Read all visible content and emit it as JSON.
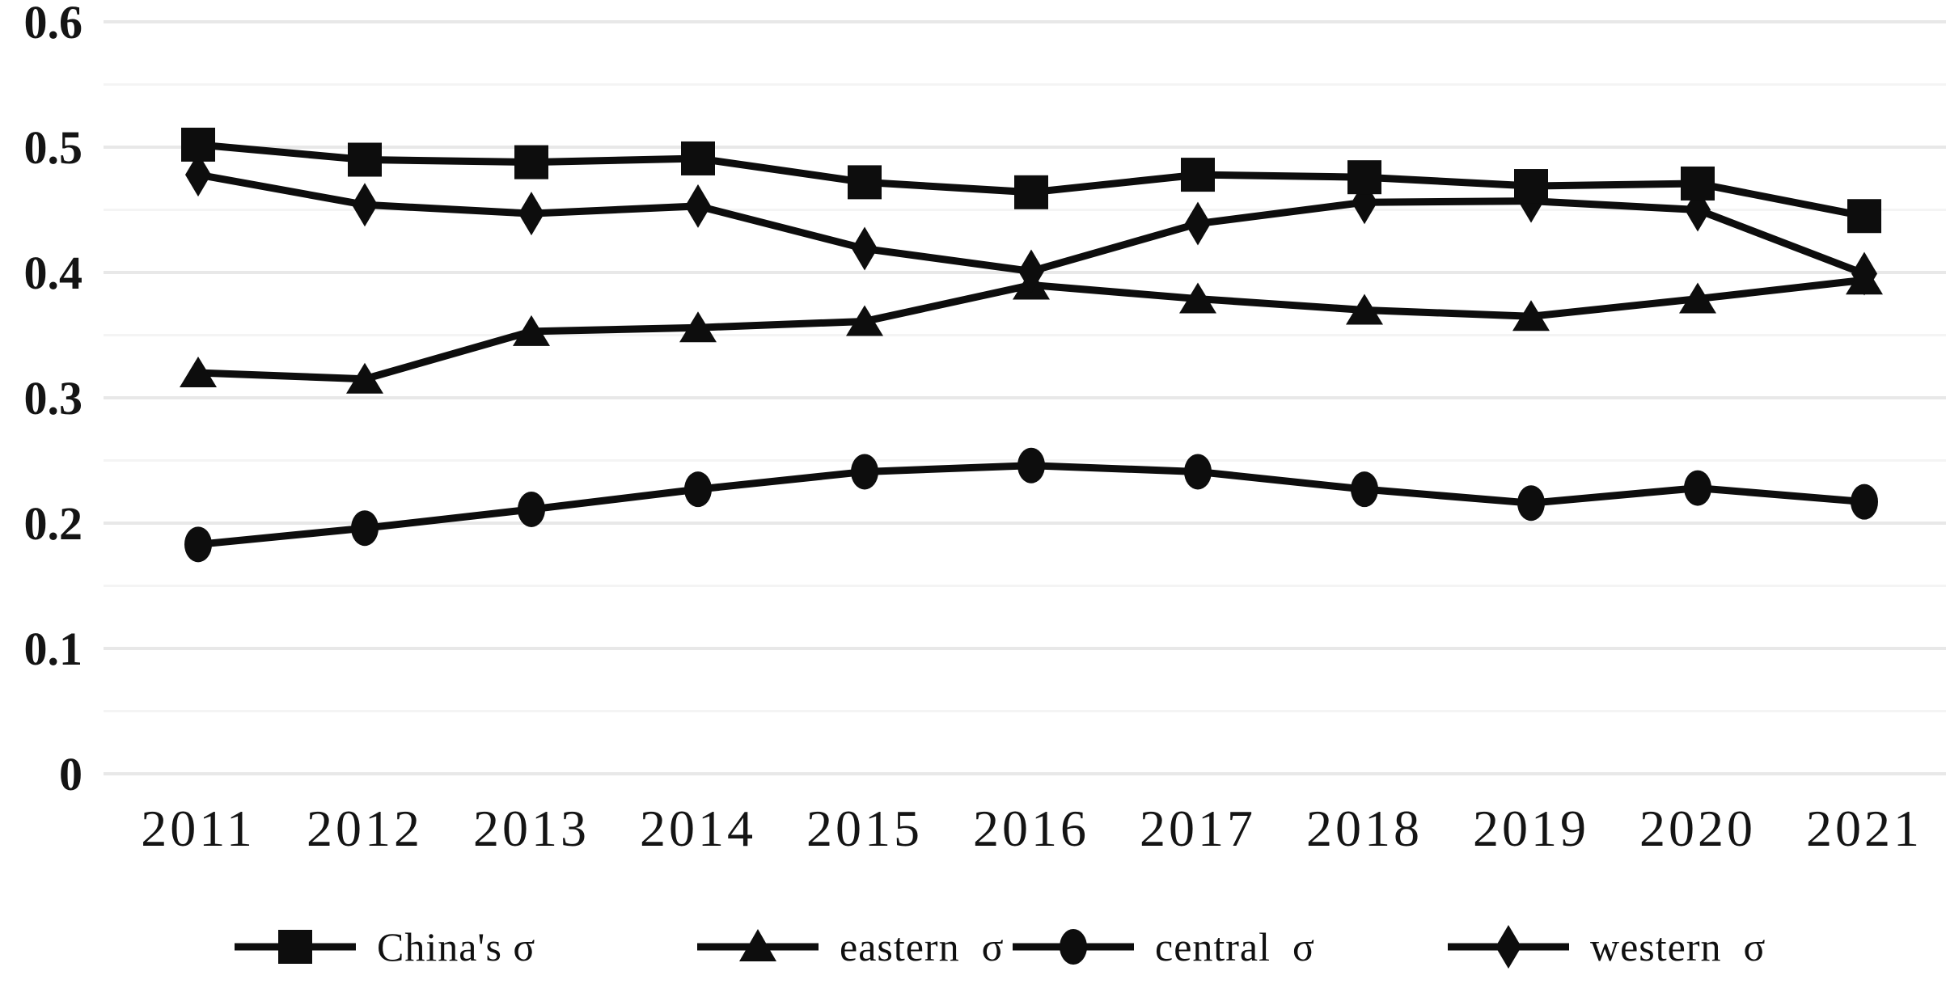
{
  "figure": {
    "background": "#ffffff",
    "title": ""
  },
  "chart_data": {
    "type": "line",
    "title": "",
    "xlabel": "",
    "ylabel": "",
    "x": [
      "2011",
      "2012",
      "2013",
      "2014",
      "2015",
      "2016",
      "2017",
      "2018",
      "2019",
      "2020",
      "2021"
    ],
    "series": [
      {
        "name": "China's σ",
        "marker": "square",
        "color": "#0d0d0d",
        "values": [
          0.502,
          0.49,
          0.488,
          0.491,
          0.472,
          0.464,
          0.478,
          0.476,
          0.469,
          0.471,
          0.445
        ]
      },
      {
        "name": "eastern  σ",
        "marker": "triangle",
        "color": "#0d0d0d",
        "values": [
          0.32,
          0.315,
          0.353,
          0.356,
          0.361,
          0.39,
          0.379,
          0.37,
          0.365,
          0.379,
          0.394
        ]
      },
      {
        "name": "central  σ",
        "marker": "circle",
        "color": "#0d0d0d",
        "values": [
          0.183,
          0.196,
          0.211,
          0.227,
          0.241,
          0.246,
          0.241,
          0.227,
          0.216,
          0.228,
          0.217
        ]
      },
      {
        "name": "western  σ",
        "marker": "diamond",
        "color": "#0d0d0d",
        "values": [
          0.478,
          0.454,
          0.447,
          0.453,
          0.419,
          0.401,
          0.439,
          0.456,
          0.457,
          0.45,
          0.399
        ]
      }
    ],
    "ylim": [
      0,
      0.6
    ],
    "yticks": [
      0,
      0.1,
      0.2,
      0.3,
      0.4,
      0.5,
      0.6
    ],
    "ytick_labels": [
      "0",
      "0.1",
      "0.2",
      "0.3",
      "0.4",
      "0.5",
      "0.6"
    ],
    "minor_ytick_step": 0.05,
    "grid": "horizontal-only",
    "legend_position": "bottom",
    "style": {
      "line_color": "#0d0d0d",
      "major_grid_color": "#e8e8e8",
      "minor_grid_color": "#f4f4f4",
      "text_color": "#141414",
      "background": "#ffffff"
    }
  }
}
